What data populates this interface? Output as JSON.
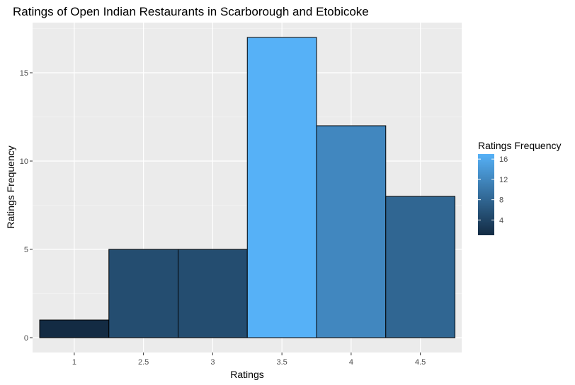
{
  "chart_data": {
    "type": "bar",
    "title": "Ratings of Open Indian Restaurants in Scarborough and Etobicoke",
    "xlabel": "Ratings",
    "ylabel": "Ratings Frequency",
    "categories": [
      "1",
      "2.5",
      "3",
      "3.5",
      "4",
      "4.5"
    ],
    "x": [
      1,
      2.5,
      3,
      3.5,
      4,
      4.5
    ],
    "values": [
      1,
      5,
      5,
      17,
      12,
      8
    ],
    "y_ticks": [
      0,
      5,
      10,
      15
    ],
    "ylim": [
      0,
      17.85
    ],
    "grid": true,
    "legend": {
      "title": "Ratings Frequency",
      "type": "colorbar",
      "placement": "right",
      "breaks": [
        4,
        8,
        12,
        16
      ],
      "range": [
        1,
        17
      ],
      "low_color": "#132b43",
      "high_color": "#56b1f7"
    },
    "colors": {
      "panel_background": "#ebebeb",
      "grid_major": "#ffffff",
      "bar_outline": "#000000"
    }
  }
}
